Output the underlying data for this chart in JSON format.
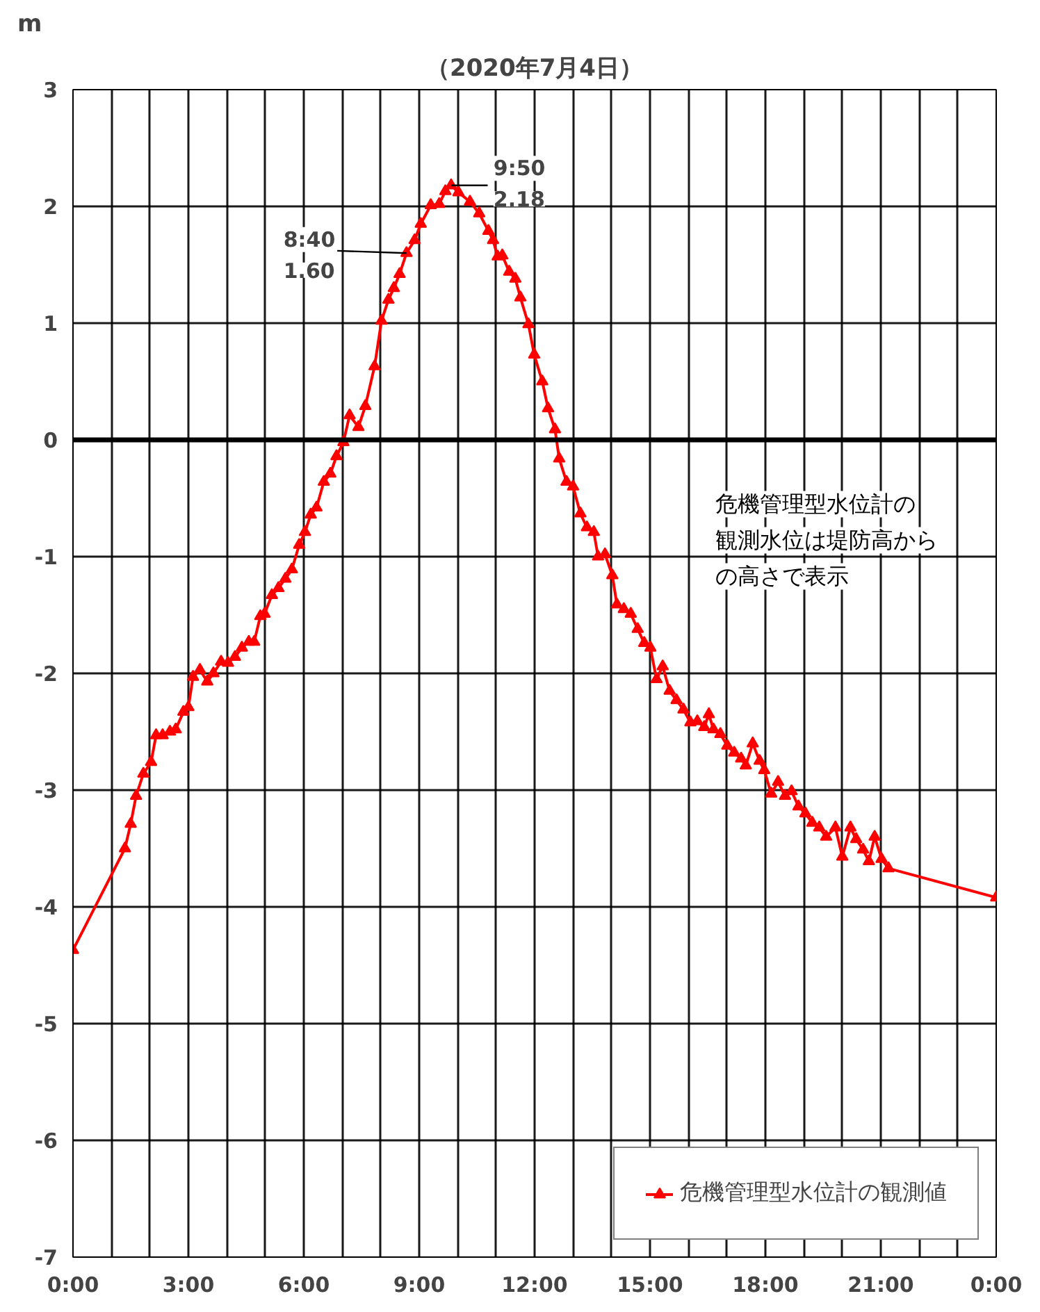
{
  "chart_data": {
    "type": "line",
    "title": "（2020年7月4日）",
    "ylabel": "m",
    "x": [
      0,
      1.35,
      1.5,
      1.64,
      1.83,
      2.03,
      2.16,
      2.33,
      2.52,
      2.67,
      2.87,
      3.0,
      3.12,
      3.3,
      3.49,
      3.65,
      3.85,
      4.03,
      4.21,
      4.39,
      4.57,
      4.71,
      4.87,
      4.98,
      5.17,
      5.34,
      5.52,
      5.69,
      5.88,
      6.03,
      6.18,
      6.33,
      6.52,
      6.69,
      6.85,
      7.03,
      7.19,
      7.42,
      7.6,
      7.84,
      8.02,
      8.2,
      8.34,
      8.49,
      8.67,
      8.88,
      9.04,
      9.3,
      9.52,
      9.68,
      9.83,
      10.02,
      10.32,
      10.56,
      10.8,
      10.92,
      11.04,
      11.16,
      11.34,
      11.5,
      11.63,
      11.84,
      11.99,
      12.2,
      12.35,
      12.53,
      12.64,
      12.83,
      13.0,
      13.19,
      13.36,
      13.54,
      13.65,
      13.83,
      14.02,
      14.14,
      14.32,
      14.5,
      14.68,
      14.85,
      15.01,
      15.17,
      15.33,
      15.51,
      15.69,
      15.87,
      16.05,
      16.23,
      16.41,
      16.53,
      16.65,
      16.83,
      17.01,
      17.19,
      17.37,
      17.49,
      17.67,
      17.85,
      17.97,
      18.15,
      18.33,
      18.51,
      18.68,
      18.86,
      19.04,
      19.22,
      19.4,
      19.58,
      19.82,
      20.0,
      20.21,
      20.36,
      20.54,
      20.69,
      20.84,
      21.02,
      21.2,
      24.0
    ],
    "series": [
      {
        "name": "危機管理型水位計の観測値",
        "color": "#ff0000",
        "values": [
          -4.37,
          -3.5,
          -3.29,
          -3.05,
          -2.86,
          -2.76,
          -2.53,
          -2.53,
          -2.5,
          -2.48,
          -2.33,
          -2.29,
          -2.03,
          -1.97,
          -2.07,
          -2.0,
          -1.9,
          -1.91,
          -1.86,
          -1.78,
          -1.73,
          -1.73,
          -1.51,
          -1.49,
          -1.33,
          -1.27,
          -1.19,
          -1.11,
          -0.9,
          -0.79,
          -0.64,
          -0.58,
          -0.36,
          -0.29,
          -0.14,
          -0.02,
          0.21,
          0.11,
          0.29,
          0.63,
          1.02,
          1.2,
          1.3,
          1.42,
          1.6,
          1.71,
          1.85,
          2.01,
          2.02,
          2.13,
          2.18,
          2.12,
          2.04,
          1.94,
          1.79,
          1.71,
          1.57,
          1.58,
          1.44,
          1.38,
          1.22,
          0.99,
          0.73,
          0.5,
          0.27,
          0.09,
          -0.16,
          -0.36,
          -0.4,
          -0.63,
          -0.75,
          -0.79,
          -1.0,
          -0.98,
          -1.16,
          -1.41,
          -1.45,
          -1.49,
          -1.62,
          -1.74,
          -1.78,
          -2.05,
          -1.94,
          -2.15,
          -2.23,
          -2.31,
          -2.42,
          -2.41,
          -2.46,
          -2.35,
          -2.48,
          -2.52,
          -2.62,
          -2.68,
          -2.73,
          -2.79,
          -2.6,
          -2.75,
          -2.83,
          -3.03,
          -2.93,
          -3.05,
          -3.01,
          -3.14,
          -3.2,
          -3.28,
          -3.32,
          -3.4,
          -3.32,
          -3.57,
          -3.32,
          -3.42,
          -3.51,
          -3.61,
          -3.4,
          -3.59,
          -3.67,
          -3.92
        ]
      }
    ],
    "xlim": [
      0,
      24
    ],
    "xticks": [
      {
        "value": 0,
        "label": "0:00"
      },
      {
        "value": 1,
        "label": null
      },
      {
        "value": 2,
        "label": null
      },
      {
        "value": 3,
        "label": "3:00"
      },
      {
        "value": 4,
        "label": null
      },
      {
        "value": 5,
        "label": null
      },
      {
        "value": 6,
        "label": "6:00"
      },
      {
        "value": 7,
        "label": null
      },
      {
        "value": 8,
        "label": null
      },
      {
        "value": 9,
        "label": "9:00"
      },
      {
        "value": 10,
        "label": null
      },
      {
        "value": 11,
        "label": null
      },
      {
        "value": 12,
        "label": "12:00"
      },
      {
        "value": 13,
        "label": null
      },
      {
        "value": 14,
        "label": null
      },
      {
        "value": 15,
        "label": "15:00"
      },
      {
        "value": 16,
        "label": null
      },
      {
        "value": 17,
        "label": null
      },
      {
        "value": 18,
        "label": "18:00"
      },
      {
        "value": 19,
        "label": null
      },
      {
        "value": 20,
        "label": null
      },
      {
        "value": 21,
        "label": "21:00"
      },
      {
        "value": 22,
        "label": null
      },
      {
        "value": 23,
        "label": null
      },
      {
        "value": 24,
        "label": "0:00"
      }
    ],
    "ylim": [
      -7,
      3
    ],
    "yticks": [
      -7,
      -6,
      -5,
      -4,
      -3,
      -2,
      -1,
      0,
      1,
      2,
      3
    ],
    "ref_lines": [
      {
        "axis": "y",
        "value": 0,
        "color": "#000000"
      }
    ],
    "annotations": [
      {
        "text": "9:50\n2.18",
        "x": 9.83,
        "y": 2.18
      },
      {
        "text": "8:40\n1.60",
        "x": 8.67,
        "y": 1.6
      },
      "危機管理型水位計の",
      "観測水位は堤防高から",
      "の高さで表示"
    ],
    "grid": true,
    "legend": "bottom right",
    "marker": "triangle",
    "line_style": "solid"
  }
}
